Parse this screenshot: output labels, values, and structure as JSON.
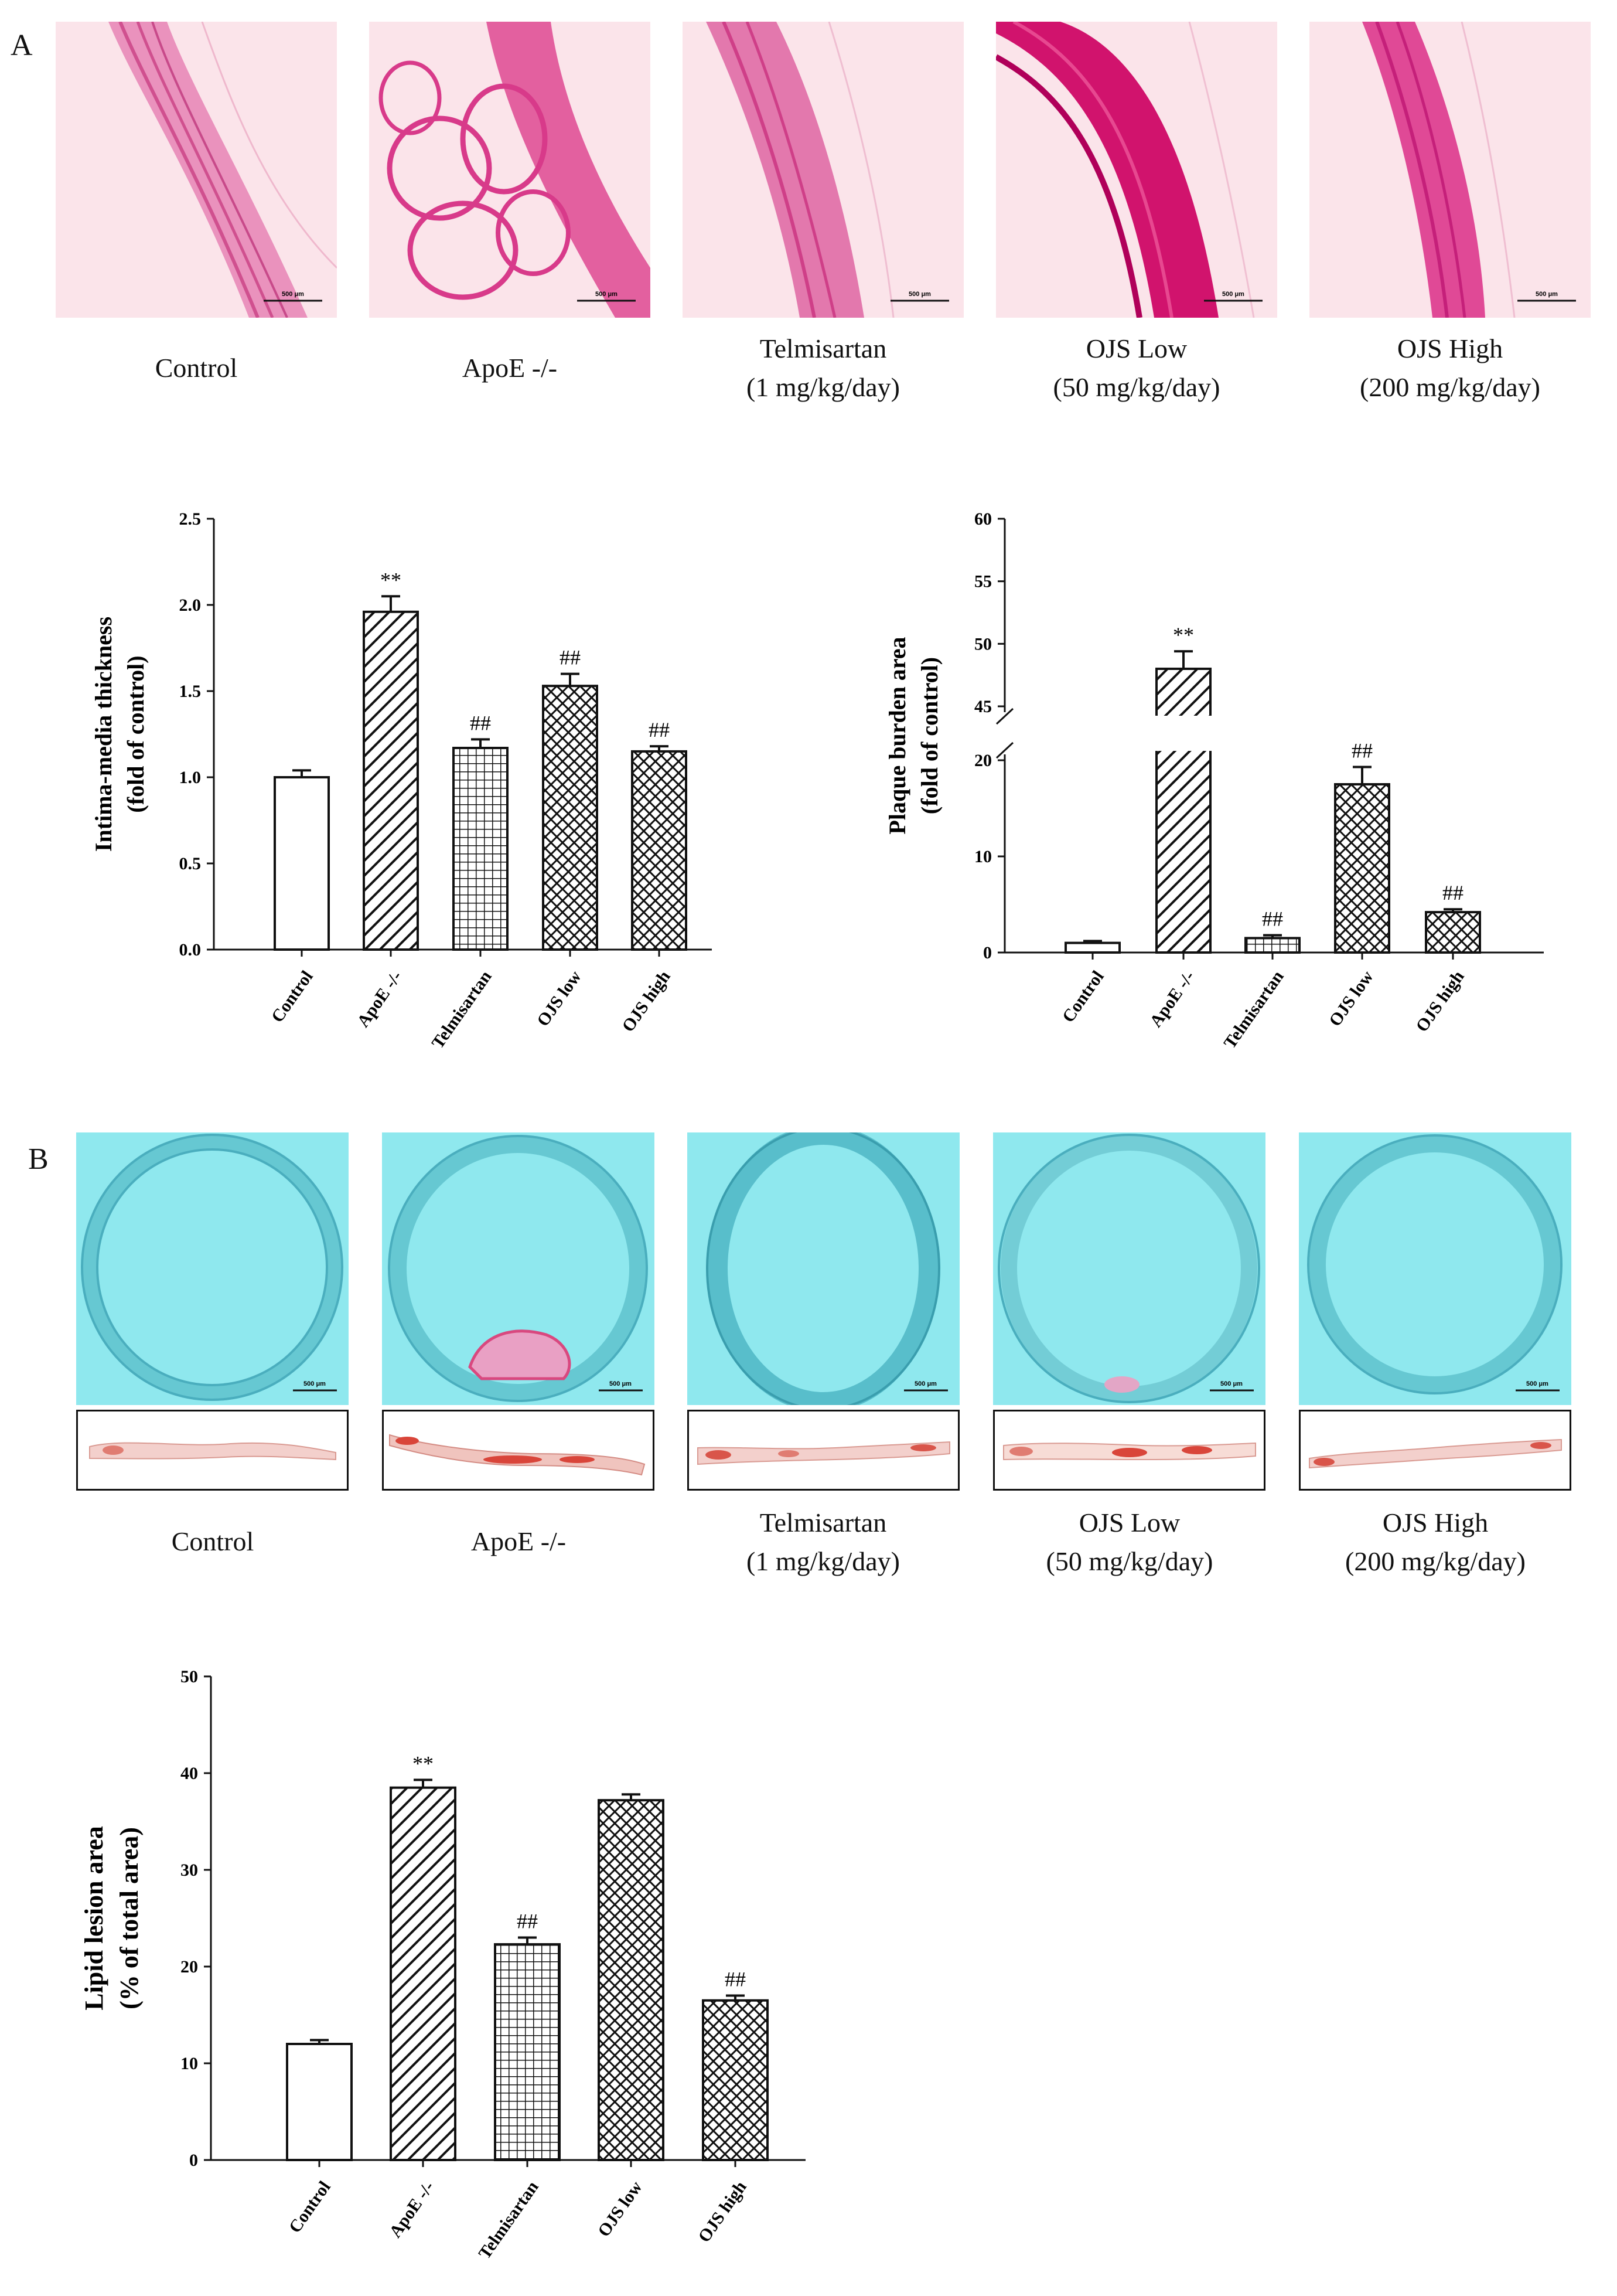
{
  "panelA": {
    "letter": "A",
    "groups": [
      {
        "name": "Control",
        "dose": ""
      },
      {
        "name": "ApoE -/-",
        "dose": ""
      },
      {
        "name": "Telmisartan",
        "dose": "(1 mg/kg/day)"
      },
      {
        "name": "OJS Low",
        "dose": "(50 mg/kg/day)"
      },
      {
        "name": "OJS High",
        "dose": "(200 mg/kg/day)"
      }
    ],
    "scale_label": "500 μm"
  },
  "panelB": {
    "letter": "B",
    "groups": [
      {
        "name": "Control",
        "dose": ""
      },
      {
        "name": "ApoE -/-",
        "dose": ""
      },
      {
        "name": "Telmisartan",
        "dose": "(1 mg/kg/day)"
      },
      {
        "name": "OJS Low",
        "dose": "(50 mg/kg/day)"
      },
      {
        "name": "OJS High",
        "dose": "(200 mg/kg/day)"
      }
    ],
    "scale_label": "500 μm"
  },
  "colors": {
    "he_background": "#fbe4ea",
    "he_stain": "#e0307f",
    "he_stain_dark": "#c8106a",
    "oro_background": "#8fe8ee",
    "oro_stain": "#4fb6c4",
    "lipid": "#d94d6a"
  },
  "chart_data": [
    {
      "type": "bar",
      "title": "",
      "ylabel_line1": "Intima-media thickness",
      "ylabel_line2": "(fold of control)",
      "categories": [
        "Control",
        "ApoE -/-",
        "Telmisartan",
        "OJS low",
        "OJS high"
      ],
      "values": [
        1.0,
        1.96,
        1.17,
        1.53,
        1.15
      ],
      "errors": [
        0.04,
        0.09,
        0.05,
        0.07,
        0.03
      ],
      "annotations": [
        "",
        "**",
        "##",
        "##",
        "##"
      ],
      "patterns": [
        "none",
        "diag",
        "grid",
        "cross",
        "cross"
      ],
      "ylim": [
        0,
        2.5
      ],
      "yticks": [
        "0.0",
        "0.5",
        "1.0",
        "1.5",
        "2.0",
        "2.5"
      ],
      "ytick_values": [
        0,
        0.5,
        1.0,
        1.5,
        2.0,
        2.5
      ]
    },
    {
      "type": "bar",
      "title": "",
      "ylabel_line1": "Plaque burden area",
      "ylabel_line2": "(fold of control)",
      "categories": [
        "Control",
        "ApoE -/-",
        "Telmisartan",
        "OJS low",
        "OJS high"
      ],
      "values": [
        1.0,
        48.0,
        1.5,
        17.5,
        4.2
      ],
      "errors": [
        0.2,
        1.4,
        0.3,
        1.8,
        0.3
      ],
      "annotations": [
        "",
        "**",
        "##",
        "##",
        "##"
      ],
      "patterns": [
        "none",
        "diag",
        "grid",
        "cross",
        "cross"
      ],
      "broken_axis": true,
      "lower_range": [
        0,
        20
      ],
      "upper_range": [
        45,
        60
      ],
      "yticks_lower": [
        "0",
        "10",
        "20"
      ],
      "ytick_values_lower": [
        0,
        10,
        20
      ],
      "yticks_upper": [
        "45",
        "50",
        "55",
        "60"
      ],
      "ytick_values_upper": [
        45,
        50,
        55,
        60
      ]
    },
    {
      "type": "bar",
      "title": "",
      "ylabel_line1": "Lipid lesion area",
      "ylabel_line2": "(% of total area)",
      "categories": [
        "Control",
        "ApoE -/-",
        "Telmisartan",
        "OJS low",
        "OJS high"
      ],
      "values": [
        12.0,
        38.5,
        22.3,
        37.2,
        16.5
      ],
      "errors": [
        0.4,
        0.8,
        0.7,
        0.6,
        0.5
      ],
      "annotations": [
        "",
        "**",
        "##",
        "",
        "##"
      ],
      "patterns": [
        "none",
        "diag",
        "grid",
        "cross",
        "cross"
      ],
      "ylim": [
        0,
        50
      ],
      "yticks": [
        "0",
        "10",
        "20",
        "30",
        "40",
        "50"
      ],
      "ytick_values": [
        0,
        10,
        20,
        30,
        40,
        50
      ]
    }
  ]
}
